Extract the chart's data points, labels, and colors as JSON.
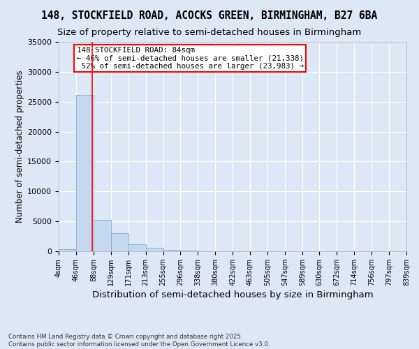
{
  "title": "148, STOCKFIELD ROAD, ACOCKS GREEN, BIRMINGHAM, B27 6BA",
  "subtitle": "Size of property relative to semi-detached houses in Birmingham",
  "xlabel": "Distribution of semi-detached houses by size in Birmingham",
  "ylabel": "Number of semi-detached properties",
  "footer_line1": "Contains HM Land Registry data © Crown copyright and database right 2025.",
  "footer_line2": "Contains public sector information licensed under the Open Government Licence v3.0.",
  "bin_edges": [
    4,
    46,
    88,
    129,
    171,
    213,
    255,
    296,
    338,
    380,
    422,
    463,
    505,
    547,
    589,
    630,
    672,
    714,
    756,
    797,
    839
  ],
  "bin_labels": [
    "4sqm",
    "46sqm",
    "88sqm",
    "129sqm",
    "171sqm",
    "213sqm",
    "255sqm",
    "296sqm",
    "338sqm",
    "380sqm",
    "422sqm",
    "463sqm",
    "505sqm",
    "547sqm",
    "589sqm",
    "630sqm",
    "672sqm",
    "714sqm",
    "756sqm",
    "797sqm",
    "839sqm"
  ],
  "bar_heights": [
    400,
    26100,
    5200,
    3000,
    1200,
    600,
    200,
    60,
    20,
    10,
    5,
    3,
    2,
    1,
    1,
    0,
    0,
    0,
    0,
    0
  ],
  "bar_color": "#c5d8f0",
  "bar_edgecolor": "#7aadd4",
  "bar_linewidth": 0.6,
  "vline_x": 84,
  "vline_color": "red",
  "ylim": [
    0,
    35000
  ],
  "annotation_text": "148 STOCKFIELD ROAD: 84sqm\n← 46% of semi-detached houses are smaller (21,338)\n 52% of semi-detached houses are larger (23,983) →",
  "annotation_box_color": "white",
  "annotation_box_edgecolor": "red",
  "bg_color": "#dce8f5",
  "plot_bg_color": "#dce8f5",
  "grid_color": "white",
  "title_fontsize": 10.5,
  "subtitle_fontsize": 9.5,
  "ylabel_fontsize": 8.5,
  "xlabel_fontsize": 9.5,
  "yticks": [
    0,
    5000,
    10000,
    15000,
    20000,
    25000,
    30000,
    35000
  ]
}
